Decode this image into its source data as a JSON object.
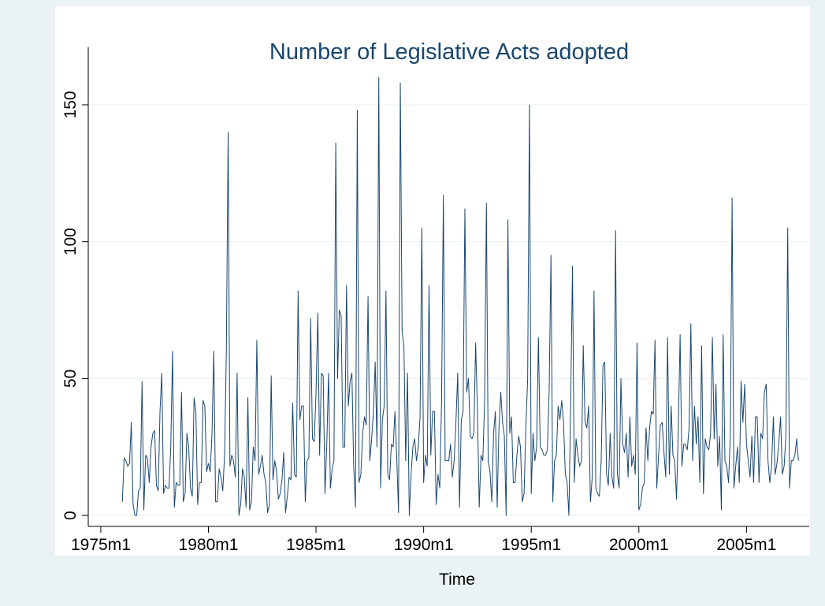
{
  "chart_data": {
    "type": "line",
    "title": "Number of Legislative Acts adopted",
    "xlabel": "Time",
    "color": "#1a476f",
    "grid": true,
    "xlim": [
      173,
      575
    ],
    "ylim": [
      -4,
      171
    ],
    "xticks": [
      {
        "value": 180,
        "label": "1975m1"
      },
      {
        "value": 240,
        "label": "1980m1"
      },
      {
        "value": 300,
        "label": "1985m1"
      },
      {
        "value": 360,
        "label": "1990m1"
      },
      {
        "value": 420,
        "label": "1995m1"
      },
      {
        "value": 480,
        "label": "2000m1"
      },
      {
        "value": 540,
        "label": "2005m1"
      }
    ],
    "yticks": [
      0,
      50,
      100,
      150
    ],
    "x": [
      192,
      193,
      194,
      195,
      196,
      197,
      198,
      199,
      200,
      201,
      202,
      203,
      204,
      205,
      206,
      207,
      208,
      209,
      210,
      211,
      212,
      213,
      214,
      215,
      216,
      217,
      218,
      219,
      220,
      221,
      222,
      223,
      224,
      225,
      226,
      227,
      228,
      229,
      230,
      231,
      232,
      233,
      234,
      235,
      236,
      237,
      238,
      239,
      240,
      241,
      242,
      243,
      244,
      245,
      246,
      247,
      248,
      249,
      250,
      251,
      252,
      253,
      254,
      255,
      256,
      257,
      258,
      259,
      260,
      261,
      262,
      263,
      264,
      265,
      266,
      267,
      268,
      269,
      270,
      271,
      272,
      273,
      274,
      275,
      276,
      277,
      278,
      279,
      280,
      281,
      282,
      283,
      284,
      285,
      286,
      287,
      288,
      289,
      290,
      291,
      292,
      293,
      294,
      295,
      296,
      297,
      298,
      299,
      300,
      301,
      302,
      303,
      304,
      305,
      306,
      307,
      308,
      309,
      310,
      311,
      312,
      313,
      314,
      315,
      316,
      317,
      318,
      319,
      320,
      321,
      322,
      323,
      324,
      325,
      326,
      327,
      328,
      329,
      330,
      331,
      332,
      333,
      334,
      335,
      336,
      337,
      338,
      339,
      340,
      341,
      342,
      343,
      344,
      345,
      346,
      347,
      348,
      349,
      350,
      351,
      352,
      353,
      354,
      355,
      356,
      357,
      358,
      359,
      360,
      361,
      362,
      363,
      364,
      365,
      366,
      367,
      368,
      369,
      370,
      371,
      372,
      373,
      374,
      375,
      376,
      377,
      378,
      379,
      380,
      381,
      382,
      383,
      384,
      385,
      386,
      387,
      388,
      389,
      390,
      391,
      392,
      393,
      394,
      395,
      396,
      397,
      398,
      399,
      400,
      401,
      402,
      403,
      404,
      405,
      406,
      407,
      408,
      409,
      410,
      411,
      412,
      413,
      414,
      415,
      416,
      417,
      418,
      419,
      420,
      421,
      422,
      423,
      424,
      425,
      426,
      427,
      428,
      429,
      430,
      431,
      432,
      433,
      434,
      435,
      436,
      437,
      438,
      439,
      440,
      441,
      442,
      443,
      444,
      445,
      446,
      447,
      448,
      449,
      450,
      451,
      452,
      453,
      454,
      455,
      456,
      457,
      458,
      459,
      460,
      461,
      462,
      463,
      464,
      465,
      466,
      467,
      468,
      469,
      470,
      471,
      472,
      473,
      474,
      475,
      476,
      477,
      478,
      479,
      480,
      481,
      482,
      483,
      484,
      485,
      486,
      487,
      488,
      489,
      490,
      491,
      492,
      493,
      494,
      495,
      496,
      497,
      498,
      499,
      500,
      501,
      502,
      503,
      504,
      505,
      506,
      507,
      508,
      509,
      510,
      511,
      512,
      513,
      514,
      515,
      516,
      517,
      518,
      519,
      520,
      521,
      522,
      523,
      524,
      525,
      526,
      527,
      528,
      529,
      530,
      531,
      532,
      533,
      534,
      535,
      536,
      537,
      538,
      539,
      540,
      541,
      542,
      543,
      544,
      545,
      546,
      547,
      548,
      549,
      550,
      551,
      552,
      553,
      554,
      555,
      556,
      557,
      558,
      559,
      560,
      561,
      562,
      563,
      564,
      565,
      566,
      567,
      568,
      569
    ],
    "values": [
      5,
      21,
      20,
      18,
      19,
      34,
      4,
      0,
      0,
      9,
      10,
      49,
      2,
      22,
      21,
      12,
      25,
      30,
      31,
      11,
      9,
      38,
      52,
      8,
      11,
      10,
      10,
      25,
      60,
      3,
      12,
      11,
      11,
      45,
      5,
      8,
      30,
      25,
      10,
      7,
      43,
      38,
      4,
      12,
      12,
      42,
      40,
      16,
      19,
      16,
      30,
      60,
      5,
      5,
      17,
      14,
      9,
      22,
      60,
      140,
      18,
      22,
      20,
      14,
      52,
      0,
      4,
      17,
      14,
      3,
      43,
      2,
      5,
      25,
      20,
      64,
      15,
      18,
      22,
      15,
      12,
      1,
      4,
      51,
      13,
      20,
      16,
      6,
      8,
      13,
      23,
      1,
      7,
      14,
      13,
      41,
      15,
      14,
      82,
      35,
      40,
      40,
      5,
      20,
      21,
      72,
      28,
      27,
      45,
      74,
      22,
      52,
      51,
      8,
      26,
      52,
      10,
      17,
      20,
      136,
      50,
      75,
      73,
      25,
      25,
      84,
      40,
      49,
      52,
      18,
      3,
      148,
      12,
      15,
      30,
      36,
      33,
      80,
      20,
      28,
      38,
      56,
      25,
      160,
      10,
      35,
      40,
      82,
      15,
      13,
      26,
      25,
      38,
      21,
      1,
      158,
      67,
      62,
      20,
      52,
      0,
      15,
      25,
      28,
      20,
      25,
      36,
      105,
      12,
      22,
      18,
      84,
      22,
      38,
      38,
      4,
      15,
      10,
      42,
      117,
      20,
      20,
      20,
      26,
      14,
      20,
      34,
      52,
      3,
      35,
      38,
      112,
      45,
      50,
      29,
      28,
      30,
      63,
      38,
      3,
      22,
      20,
      42,
      114,
      20,
      16,
      5,
      30,
      38,
      3,
      32,
      45,
      34,
      29,
      0,
      108,
      30,
      36,
      12,
      12,
      22,
      29,
      25,
      5,
      8,
      32,
      50,
      150,
      8,
      30,
      20,
      25,
      65,
      25,
      24,
      22,
      22,
      24,
      46,
      95,
      5,
      20,
      22,
      40,
      35,
      42,
      34,
      15,
      12,
      0,
      42,
      91,
      12,
      28,
      22,
      18,
      20,
      62,
      34,
      32,
      40,
      5,
      14,
      82,
      10,
      8,
      7,
      20,
      55,
      56,
      15,
      11,
      30,
      14,
      10,
      104,
      15,
      10,
      50,
      26,
      23,
      30,
      14,
      36,
      18,
      22,
      15,
      63,
      2,
      4,
      10,
      12,
      32,
      20,
      32,
      38,
      37,
      64,
      10,
      22,
      33,
      34,
      23,
      14,
      65,
      15,
      40,
      22,
      20,
      6,
      32,
      66,
      18,
      26,
      26,
      24,
      32,
      70,
      20,
      40,
      26,
      36,
      12,
      62,
      8,
      28,
      25,
      24,
      30,
      65,
      28,
      48,
      18,
      29,
      2,
      66,
      20,
      18,
      12,
      29,
      116,
      10,
      18,
      25,
      12,
      49,
      34,
      48,
      26,
      20,
      14,
      29,
      12,
      36,
      36,
      12,
      30,
      28,
      45,
      48,
      20,
      12,
      18,
      36,
      15,
      19,
      26,
      36,
      15,
      18,
      29,
      105,
      10,
      20,
      20,
      22,
      28,
      20
    ]
  }
}
